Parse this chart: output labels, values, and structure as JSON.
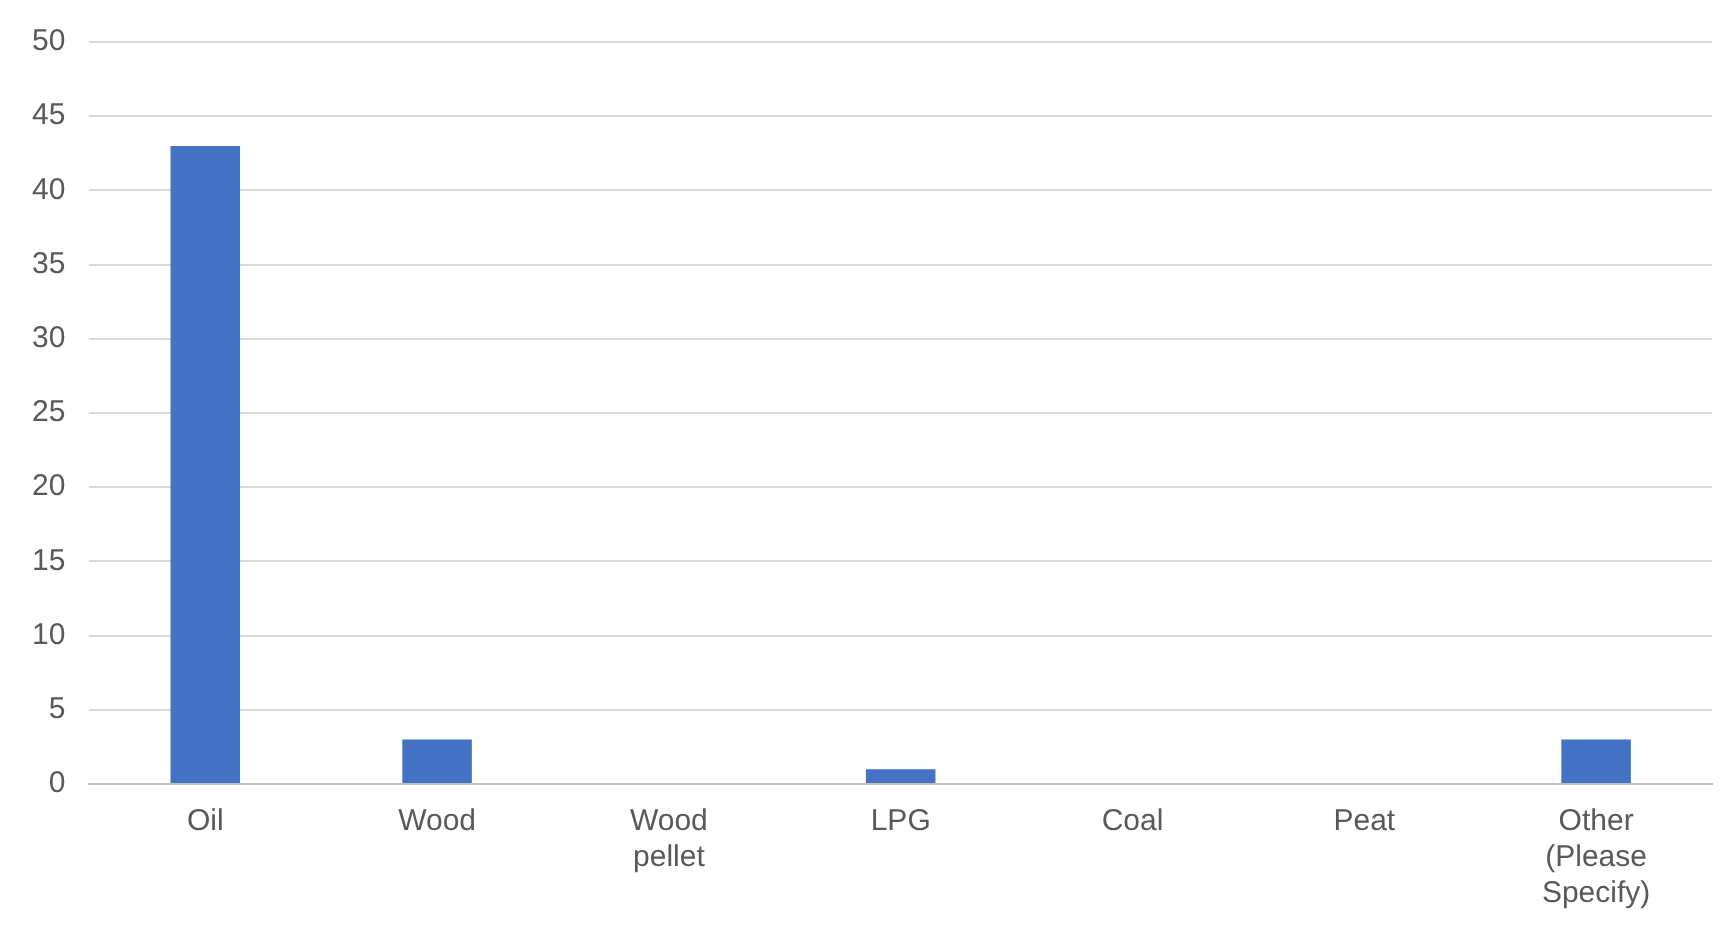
{
  "chart_data": {
    "type": "bar",
    "categories": [
      "Oil",
      "Wood",
      "Wood pellet",
      "LPG",
      "Coal",
      "Peat",
      "Other (Please Specify)"
    ],
    "values": [
      43,
      3,
      0,
      1,
      0,
      0,
      3
    ],
    "color": "#4472c4",
    "ylim": [
      0,
      50
    ],
    "yticks": [
      0,
      5,
      10,
      15,
      20,
      25,
      30,
      35,
      40,
      45,
      50
    ],
    "grid": "y",
    "legend": false
  }
}
